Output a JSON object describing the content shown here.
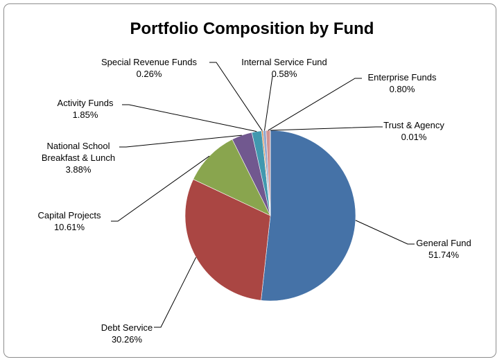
{
  "chart_data": {
    "type": "pie",
    "title": "Portfolio Composition by Fund",
    "categories": [
      "General Fund",
      "Debt Service",
      "Capital Projects",
      "National School Breakfast & Lunch",
      "Activity Funds",
      "Special Revenue Funds",
      "Internal Service Fund",
      "Enterprise Funds",
      "Trust & Agency"
    ],
    "values": [
      51.74,
      30.26,
      10.61,
      3.88,
      1.85,
      0.26,
      0.58,
      0.8,
      0.01
    ],
    "value_labels": [
      "51.74%",
      "30.26%",
      "10.61%",
      "3.88%",
      "1.85%",
      "0.26%",
      "0.58%",
      "0.80%",
      "0.01%"
    ],
    "colors": [
      "#4572A7",
      "#AA4643",
      "#89A54E",
      "#71588F",
      "#4198AF",
      "#DB843D",
      "#93A9CF",
      "#D19392",
      "#B9CD96"
    ]
  }
}
